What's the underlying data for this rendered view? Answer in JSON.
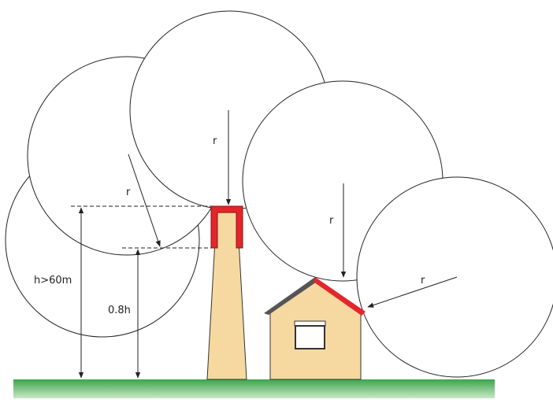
{
  "labels": {
    "radius_sphere_1": "r",
    "radius_sphere_2": "r",
    "radius_sphere_3": "r",
    "radius_sphere_4": "r",
    "height": "h>60m",
    "side_height": "0.8h"
  }
}
